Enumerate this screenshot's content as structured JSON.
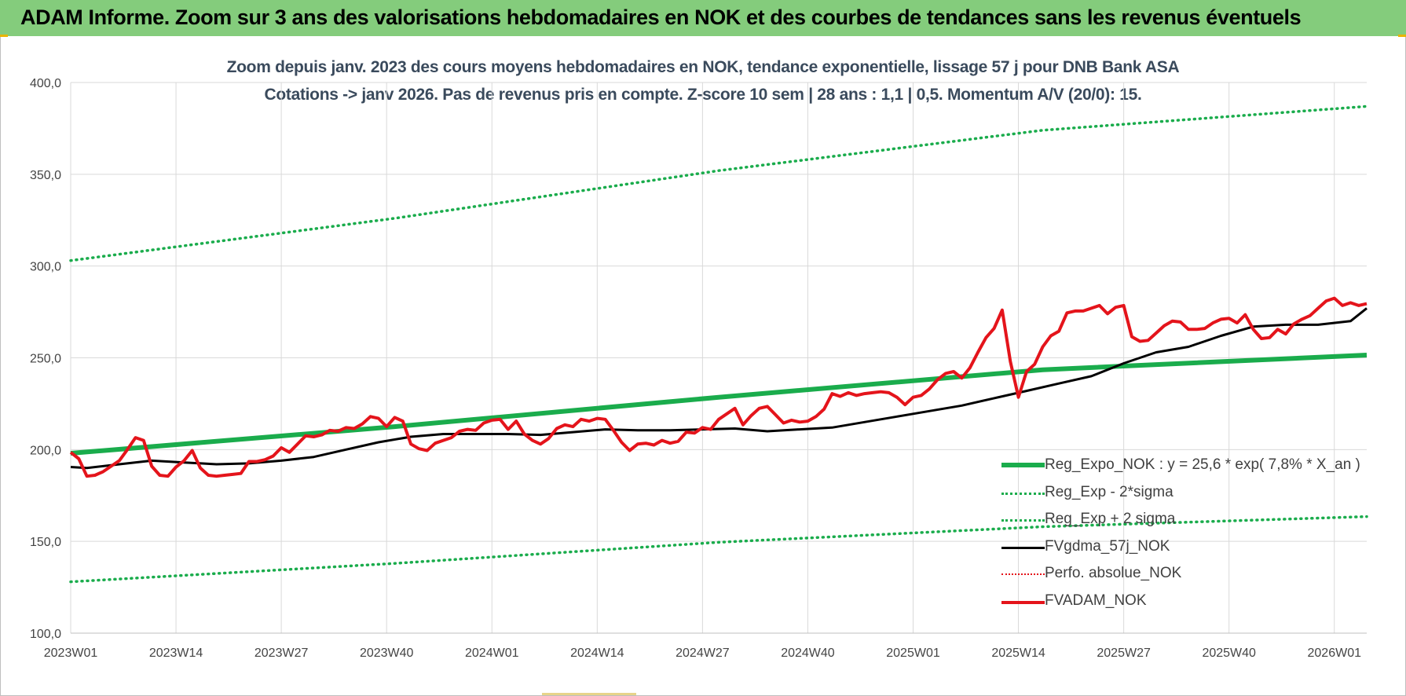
{
  "banner": {
    "title": "ADAM Informe. Zoom sur 3 ans des valorisations hebdomadaires en NOK et des courbes de tendances sans les revenus éventuels"
  },
  "chart_data": {
    "type": "line",
    "title": "Zoom depuis janv. 2023 des cours moyens hebdomadaires en NOK, tendance exponentielle, lissage 57 j pour DNB Bank ASA",
    "subtitle": "Cotations -> janv 2026. Pas de revenus pris en compte. Z-score 10 sem | 28 ans : 1,1 | 0,5. Momentum A/V (20/0): 15.",
    "ylim": [
      100,
      400
    ],
    "yticks": [
      "100,0",
      "150,0",
      "200,0",
      "250,0",
      "300,0",
      "350,0",
      "400,0"
    ],
    "xticks": [
      "2023W01",
      "2023W14",
      "2023W27",
      "2023W40",
      "2024W01",
      "2024W14",
      "2024W27",
      "2024W40",
      "2025W01",
      "2025W14",
      "2025W27",
      "2025W40",
      "2026W01"
    ],
    "grid": true,
    "legend_position": "bottom-right",
    "series": [
      {
        "name": "Reg_Expo_NOK : y = 25,6 * exp( 7,8% *  X_an )",
        "style": "solid-thick",
        "color": "#1aac4c",
        "x": [
          0,
          40,
          80,
          120,
          160
        ],
        "values": [
          198,
          212.5,
          228.5,
          243.5,
          251.5
        ]
      },
      {
        "name": "Reg_Exp - 2*sigma",
        "style": "dotted",
        "color": "#1aac4c",
        "x": [
          0,
          40,
          80,
          120,
          160
        ],
        "values": [
          303,
          326,
          352,
          374,
          387
        ]
      },
      {
        "name": "Reg_Exp + 2 sigma",
        "style": "dotted",
        "color": "#1aac4c",
        "x": [
          0,
          40,
          80,
          120,
          160
        ],
        "values": [
          128,
          138,
          149.5,
          158,
          163.5
        ]
      },
      {
        "name": "FVgdma_57j_NOK",
        "style": "solid",
        "color": "#000000",
        "x": [
          0,
          2,
          6,
          10,
          14,
          18,
          22,
          26,
          30,
          34,
          38,
          42,
          46,
          50,
          54,
          58,
          62,
          66,
          70,
          74,
          78,
          82,
          86,
          90,
          94,
          98,
          102,
          106,
          110,
          114,
          118,
          122,
          126,
          130,
          134,
          138,
          142,
          146,
          150,
          154,
          158,
          160
        ],
        "values": [
          190.5,
          190,
          192,
          194,
          193,
          192,
          192.5,
          194,
          196,
          200,
          204,
          207,
          208.5,
          208.5,
          208.5,
          208,
          209.5,
          211,
          210.5,
          210.5,
          211,
          211.5,
          210,
          211,
          212,
          215,
          218,
          221,
          224,
          228,
          232,
          236,
          240,
          247,
          253,
          256,
          262,
          267,
          268,
          268,
          270,
          277
        ]
      },
      {
        "name": "Perfo. absolue_NOK",
        "style": "dotted",
        "color": "#e4141b",
        "x": [],
        "values": []
      },
      {
        "name": "FVADAM_NOK",
        "style": "solid-thick",
        "color": "#e4141b",
        "x": [
          0,
          1,
          2,
          3,
          4,
          5,
          6,
          7,
          8,
          9,
          10,
          11,
          12,
          13,
          14,
          15,
          16,
          17,
          18,
          19,
          20,
          21,
          22,
          23,
          24,
          25,
          26,
          27,
          28,
          29,
          30,
          31,
          32,
          33,
          34,
          35,
          36,
          37,
          38,
          39,
          40,
          41,
          42,
          43,
          44,
          45,
          46,
          47,
          48,
          49,
          50,
          51,
          52,
          53,
          54,
          55,
          56,
          57,
          58,
          59,
          60,
          61,
          62,
          63,
          64,
          65,
          66,
          67,
          68,
          69,
          70,
          71,
          72,
          73,
          74,
          75,
          76,
          77,
          78,
          79,
          80,
          81,
          82,
          83,
          84,
          85,
          86,
          87,
          88,
          89,
          90,
          91,
          92,
          93,
          94,
          95,
          96,
          97,
          98,
          99,
          100,
          101,
          102,
          103,
          104,
          105,
          106,
          107,
          108,
          109,
          110,
          111,
          112,
          113,
          114,
          115,
          116,
          117,
          118,
          119,
          120,
          121,
          122,
          123,
          124,
          125,
          126,
          127,
          128,
          129,
          130,
          131,
          132,
          133,
          134,
          135,
          136,
          137,
          138,
          139,
          140,
          141,
          142,
          143,
          144,
          145,
          146,
          147,
          148,
          149,
          150,
          151,
          152,
          153,
          154,
          155,
          156,
          157,
          158,
          159,
          160
        ],
        "values": [
          198.5,
          195,
          185.5,
          186,
          188,
          191,
          194,
          200,
          206.5,
          205,
          191,
          186,
          185.5,
          190.5,
          194,
          199.5,
          190,
          186,
          185.5,
          186,
          186.5,
          187,
          193.5,
          193.5,
          194.5,
          196.5,
          201,
          198.5,
          203,
          207.5,
          207,
          208,
          210.5,
          210,
          212,
          211.5,
          214,
          218,
          217,
          212.5,
          217.5,
          215.5,
          203,
          200.5,
          199.5,
          203.5,
          205,
          206.5,
          210,
          211,
          210.5,
          214.5,
          216,
          216.5,
          211,
          215.5,
          208.5,
          205,
          203,
          206,
          211.5,
          213.5,
          212.5,
          216.5,
          215.5,
          217,
          216.5,
          210.5,
          204,
          199.5,
          203,
          203.5,
          202.5,
          205,
          203.5,
          204.5,
          209.5,
          209,
          212,
          211,
          216.5,
          219.5,
          222.5,
          213.5,
          218.5,
          222.5,
          223.5,
          219,
          214.5,
          216,
          215,
          215.5,
          218,
          222,
          230.5,
          229,
          231,
          229.5,
          230.5,
          231,
          231.5,
          231,
          228.5,
          224.5,
          228.5,
          229.5,
          233,
          238,
          241.5,
          242.5,
          239,
          244.5,
          253,
          261,
          266,
          276,
          248,
          228.5,
          242.5,
          246.5,
          256,
          262,
          264.5,
          274.5,
          275.5,
          275.5,
          277,
          278.5,
          274,
          277.5,
          278.5,
          261.5,
          259,
          259.5,
          263.5,
          267.5,
          270,
          269.5,
          265.5,
          265.5,
          266,
          269,
          271,
          271.5,
          269,
          273.5,
          265.5,
          260.5,
          261,
          265.5,
          263,
          268.5,
          271,
          273,
          277,
          281,
          282.5,
          278.5,
          280,
          278.5,
          279.5
        ]
      }
    ]
  }
}
